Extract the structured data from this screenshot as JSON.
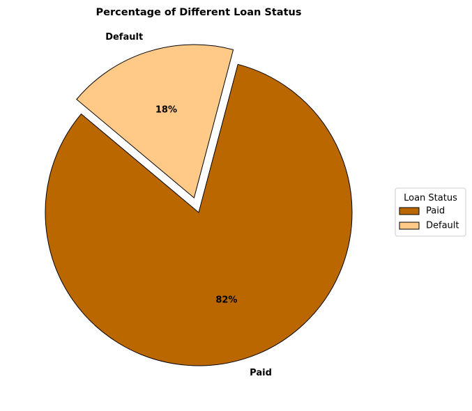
{
  "chart_data": {
    "type": "pie",
    "title": "Percentage of Different Loan Status",
    "start_angle_deg": 140,
    "counterclockwise": true,
    "slices": [
      {
        "label": "Paid",
        "value": 82,
        "pct_label": "82%",
        "color": "#bb6700",
        "explode": 0
      },
      {
        "label": "Default",
        "value": 18,
        "pct_label": "18%",
        "color": "#ffc988",
        "explode": 0.1
      }
    ],
    "edge_color": "#000000",
    "legend": {
      "title": "Loan Status",
      "placement": "center-right",
      "entries": [
        {
          "label": "Paid",
          "color": "#bb6700"
        },
        {
          "label": "Default",
          "color": "#ffc988"
        }
      ]
    }
  }
}
